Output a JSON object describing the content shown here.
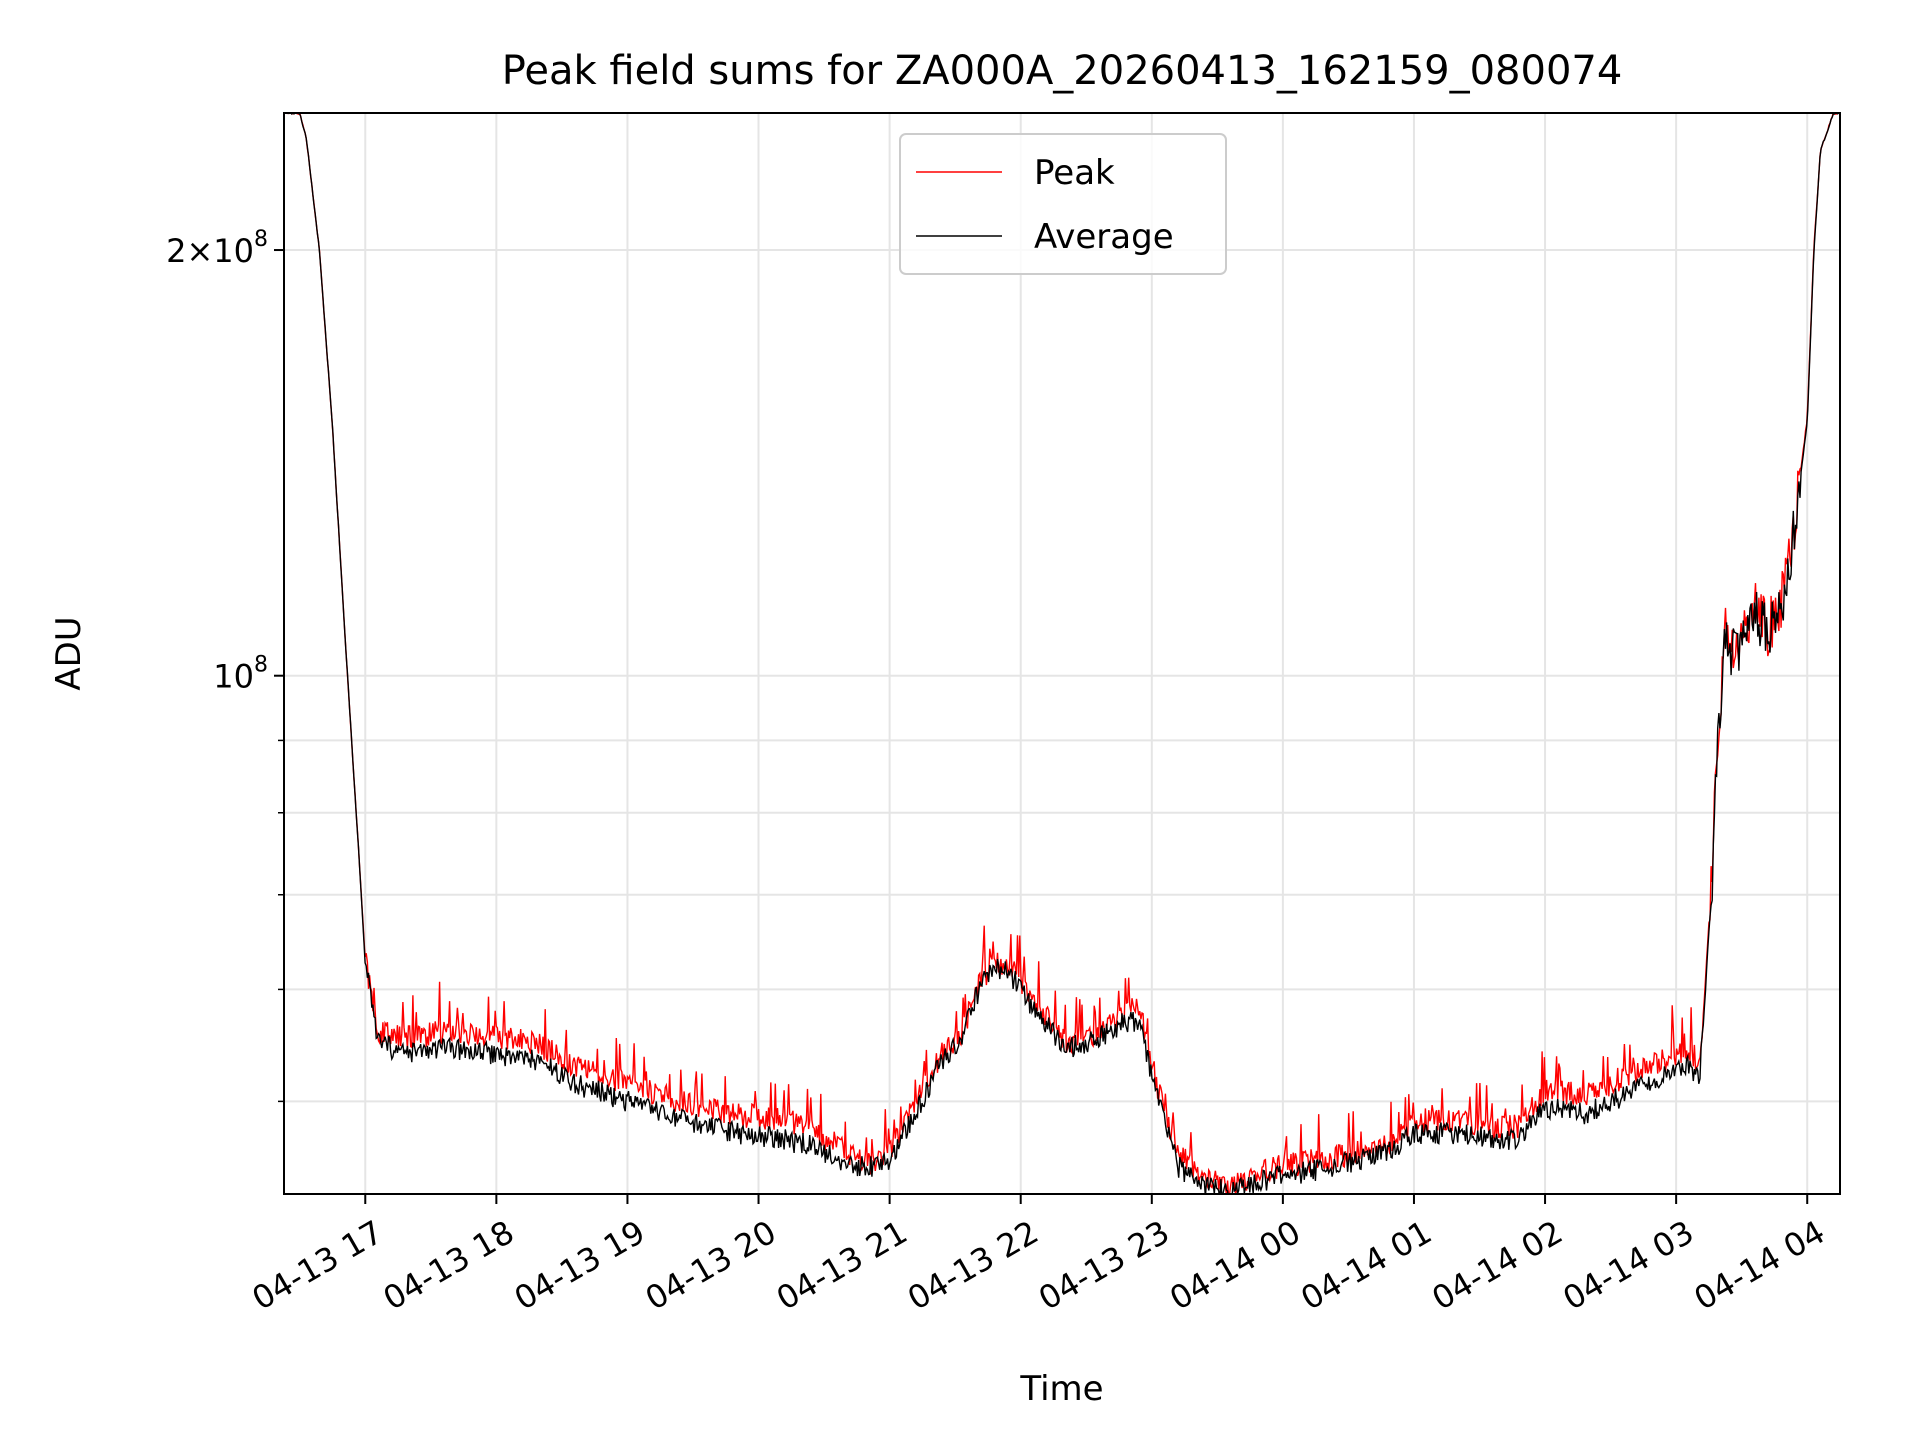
{
  "chart_data": {
    "type": "line",
    "title": "Peak field sums for ZA000A_20260413_162159_080074",
    "xlabel": "Time",
    "ylabel": "ADU",
    "yscale": "log",
    "ylim": [
      43000000,
      250000000
    ],
    "xlim_hours": [
      16.38,
      28.25
    ],
    "grid": true,
    "legend": {
      "placement": "upper-center",
      "entries": [
        "Peak",
        "Average"
      ]
    },
    "x_ticks": [
      {
        "label": "04-13 17",
        "hours": 17
      },
      {
        "label": "04-13 18",
        "hours": 18
      },
      {
        "label": "04-13 19",
        "hours": 19
      },
      {
        "label": "04-13 20",
        "hours": 20
      },
      {
        "label": "04-13 21",
        "hours": 21
      },
      {
        "label": "04-13 22",
        "hours": 22
      },
      {
        "label": "04-13 23",
        "hours": 23
      },
      {
        "label": "04-14 00",
        "hours": 24
      },
      {
        "label": "04-14 01",
        "hours": 25
      },
      {
        "label": "04-14 02",
        "hours": 26
      },
      {
        "label": "04-14 03",
        "hours": 27
      },
      {
        "label": "04-14 04",
        "hours": 28
      }
    ],
    "y_ticks": [
      {
        "base": "2",
        "mult": "×",
        "pow": "10",
        "exp": "8",
        "value": 200000000
      },
      {
        "base": "",
        "mult": "",
        "pow": "10",
        "exp": "8",
        "value": 100000000
      }
    ],
    "y_minor_ticks": [
      50000000,
      60000000,
      70000000,
      80000000,
      90000000
    ],
    "series": [
      {
        "name": "Peak",
        "color": "#ff0000",
        "noise": 0.02,
        "spikes": true,
        "x_hours": [
          16.38,
          16.5,
          16.55,
          16.65,
          16.75,
          16.85,
          16.95,
          17.0,
          17.1,
          17.3,
          17.6,
          18.0,
          18.3,
          18.6,
          19.0,
          19.4,
          19.8,
          20.2,
          20.4,
          20.6,
          20.75,
          20.9,
          21.0,
          21.2,
          21.4,
          21.55,
          21.7,
          21.8,
          21.9,
          22.1,
          22.35,
          22.6,
          22.8,
          22.9,
          23.05,
          23.2,
          23.4,
          23.6,
          23.8,
          24.0,
          24.3,
          24.6,
          24.8,
          25.0,
          25.3,
          25.6,
          25.8,
          26.0,
          26.3,
          26.6,
          26.9,
          27.1,
          27.18,
          27.22,
          27.28,
          27.33,
          27.38,
          27.45,
          27.6,
          27.7,
          27.8,
          27.9,
          28.0,
          28.05,
          28.1,
          28.2,
          28.25
        ],
        "y": [
          250000000,
          250000000,
          240000000,
          200000000,
          150000000,
          105000000,
          75000000,
          63000000,
          56000000,
          55500000,
          56000000,
          55500000,
          55000000,
          53000000,
          51500000,
          50000000,
          49000000,
          48500000,
          48000000,
          46500000,
          45500000,
          45200000,
          46000000,
          50000000,
          54000000,
          56000000,
          61000000,
          62500000,
          62500000,
          59000000,
          55000000,
          56000000,
          58000000,
          58000000,
          51000000,
          46000000,
          44000000,
          43500000,
          44500000,
          45000000,
          45500000,
          46000000,
          46500000,
          48500000,
          48500000,
          48000000,
          48000000,
          51000000,
          50500000,
          52000000,
          53500000,
          54500000,
          53000000,
          60000000,
          75000000,
          95000000,
          108000000,
          104000000,
          112000000,
          108000000,
          113000000,
          128000000,
          152000000,
          200000000,
          235000000,
          250000000,
          250000000
        ]
      },
      {
        "name": "Average",
        "color": "#000000",
        "noise": 0.018,
        "spikes": false,
        "x_hours": [
          16.38,
          16.5,
          16.55,
          16.65,
          16.75,
          16.85,
          16.95,
          17.0,
          17.1,
          17.3,
          17.6,
          18.0,
          18.3,
          18.6,
          19.0,
          19.4,
          19.8,
          20.2,
          20.4,
          20.6,
          20.75,
          20.9,
          21.0,
          21.2,
          21.4,
          21.55,
          21.7,
          21.8,
          21.9,
          22.1,
          22.35,
          22.6,
          22.8,
          22.9,
          23.05,
          23.2,
          23.4,
          23.6,
          23.8,
          24.0,
          24.3,
          24.6,
          24.8,
          25.0,
          25.3,
          25.6,
          25.8,
          26.0,
          26.3,
          26.6,
          26.9,
          27.1,
          27.18,
          27.22,
          27.28,
          27.33,
          27.38,
          27.45,
          27.6,
          27.7,
          27.8,
          27.9,
          28.0,
          28.05,
          28.1,
          28.2,
          28.25
        ],
        "y": [
          250000000,
          250000000,
          240000000,
          200000000,
          150000000,
          105000000,
          75000000,
          62500000,
          55000000,
          54000000,
          54500000,
          54000000,
          53500000,
          51500000,
          50000000,
          48500000,
          47500000,
          47000000,
          46500000,
          45500000,
          45000000,
          45000000,
          45500000,
          49000000,
          53500000,
          55500000,
          60500000,
          62000000,
          62000000,
          58000000,
          54500000,
          55500000,
          57000000,
          57000000,
          50000000,
          45000000,
          43500000,
          43200000,
          43800000,
          44300000,
          44800000,
          45500000,
          46000000,
          47500000,
          47500000,
          47000000,
          47000000,
          49500000,
          49000000,
          50500000,
          52000000,
          53000000,
          52000000,
          59000000,
          74000000,
          94000000,
          107000000,
          103000000,
          111000000,
          107000000,
          112000000,
          127000000,
          151000000,
          199000000,
          235000000,
          250000000,
          250000000
        ]
      }
    ]
  }
}
